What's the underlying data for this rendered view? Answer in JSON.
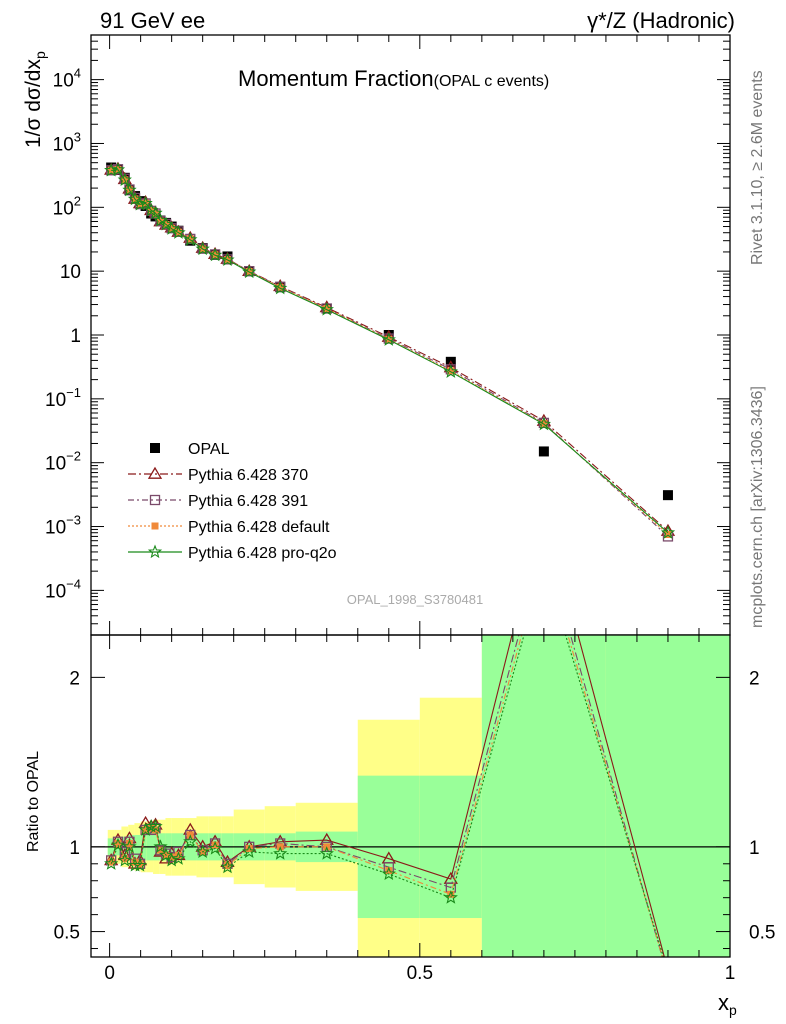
{
  "header": {
    "left": "91 GeV ee",
    "right": "γ*/Z (Hadronic)"
  },
  "side_labels": {
    "rivet": "Rivet 3.1.10, ≥ 2.6M events",
    "mcplots": "mcplots.cern.ch [arXiv:1306.3436]"
  },
  "chart_data": [
    {
      "type": "scatter",
      "title": "Momentum Fraction",
      "subtitle": "(OPAL c events)",
      "watermark": "OPAL_1998_S3780481",
      "ylabel": "1/σ dσ/dx_p",
      "ylabel_main": "1/σ dσ/dx",
      "ylabel_sub": "p",
      "yscale": "log",
      "ylim": [
        2e-05,
        50000
      ],
      "xlim": [
        -0.03,
        1.0
      ],
      "yticks": [
        {
          "v": 10000,
          "base": "10",
          "exp": "4"
        },
        {
          "v": 1000,
          "base": "10",
          "exp": "3"
        },
        {
          "v": 100,
          "base": "10",
          "exp": "2"
        },
        {
          "v": 10,
          "base": "10",
          "exp": ""
        },
        {
          "v": 1,
          "base": "1",
          "exp": ""
        },
        {
          "v": 0.1,
          "base": "10",
          "exp": "−1"
        },
        {
          "v": 0.01,
          "base": "10",
          "exp": "−2"
        },
        {
          "v": 0.001,
          "base": "10",
          "exp": "−3"
        },
        {
          "v": 0.0001,
          "base": "10",
          "exp": "−4"
        }
      ],
      "legend_position": "lower-left",
      "x": [
        0.0025,
        0.0135,
        0.0245,
        0.032,
        0.041,
        0.049,
        0.058,
        0.067,
        0.074,
        0.082,
        0.091,
        0.1,
        0.111,
        0.13,
        0.15,
        0.17,
        0.19,
        0.225,
        0.275,
        0.35,
        0.45,
        0.55,
        0.7,
        0.9
      ],
      "series": [
        {
          "name": "OPAL",
          "color": "#000000",
          "marker": "square",
          "values": [
            420,
            385,
            290,
            185,
            150,
            125,
            105,
            80,
            72,
            62,
            57,
            50,
            43,
            30,
            23,
            18,
            17,
            10,
            5.6,
            2.6,
            1.0,
            0.38,
            0.015,
            0.0031
          ]
        },
        {
          "name": "Pythia 6.428 370",
          "color": "#8b1a1a",
          "marker": "triangle",
          "values": [
            385,
            400,
            275,
            195,
            135,
            115,
            120,
            90,
            82,
            60,
            53,
            48,
            41,
            33,
            23,
            18.5,
            15.5,
            10,
            5.8,
            2.7,
            0.93,
            0.31,
            0.045,
            0.00085
          ]
        },
        {
          "name": "Pythia 6.428 391",
          "color": "#7a4a6a",
          "marker": "open-square",
          "values": [
            380,
            395,
            280,
            190,
            140,
            112,
            115,
            88,
            80,
            61,
            55,
            47,
            42,
            32,
            22.5,
            18.3,
            15.3,
            10,
            5.7,
            2.6,
            0.88,
            0.29,
            0.042,
            0.0007
          ]
        },
        {
          "name": "Pythia 6.428 default",
          "color": "#f08a3a",
          "marker": "filled-square",
          "values": [
            382,
            392,
            270,
            188,
            136,
            113,
            116,
            89,
            79,
            61,
            54,
            47,
            41,
            32,
            22.4,
            18.1,
            15.2,
            9.9,
            5.6,
            2.6,
            0.86,
            0.275,
            0.041,
            0.00075
          ]
        },
        {
          "name": "Pythia 6.428 pro-q2o",
          "color": "#1a8a1a",
          "marker": "star",
          "values": [
            378,
            388,
            268,
            186,
            134,
            111,
            115,
            90,
            81,
            62,
            54,
            46,
            40,
            31,
            22.2,
            17.8,
            15.0,
            9.7,
            5.4,
            2.5,
            0.84,
            0.265,
            0.04,
            0.0008
          ]
        }
      ]
    },
    {
      "type": "line",
      "ylabel": "Ratio to OPAL",
      "xlabel": "x_p",
      "xlabel_main": "x",
      "xlabel_sub": "p",
      "ylim": [
        0.35,
        2.25
      ],
      "xlim": [
        -0.03,
        1.0
      ],
      "yticks": [
        "0.5",
        "1",
        "2"
      ],
      "xticks": [
        "0",
        "0.5",
        "1"
      ],
      "ytick_values": [
        0.5,
        1,
        2
      ],
      "xtick_values": [
        0,
        0.5,
        1
      ],
      "reference_line": 1,
      "bands": [
        {
          "x0": -0.003,
          "x1": 0.008,
          "yel": 0.1,
          "grn": 0.05
        },
        {
          "x0": 0.008,
          "x1": 0.019,
          "yel": 0.1,
          "grn": 0.05
        },
        {
          "x0": 0.019,
          "x1": 0.03,
          "yel": 0.12,
          "grn": 0.06
        },
        {
          "x0": 0.03,
          "x1": 0.04,
          "yel": 0.13,
          "grn": 0.07
        },
        {
          "x0": 0.04,
          "x1": 0.05,
          "yel": 0.14,
          "grn": 0.07
        },
        {
          "x0": 0.05,
          "x1": 0.06,
          "yel": 0.15,
          "grn": 0.08
        },
        {
          "x0": 0.06,
          "x1": 0.07,
          "yel": 0.15,
          "grn": 0.08
        },
        {
          "x0": 0.07,
          "x1": 0.08,
          "yel": 0.16,
          "grn": 0.08
        },
        {
          "x0": 0.08,
          "x1": 0.09,
          "yel": 0.16,
          "grn": 0.08
        },
        {
          "x0": 0.09,
          "x1": 0.1,
          "yel": 0.17,
          "grn": 0.08
        },
        {
          "x0": 0.1,
          "x1": 0.12,
          "yel": 0.17,
          "grn": 0.08
        },
        {
          "x0": 0.12,
          "x1": 0.14,
          "yel": 0.17,
          "grn": 0.08
        },
        {
          "x0": 0.14,
          "x1": 0.16,
          "yel": 0.18,
          "grn": 0.08
        },
        {
          "x0": 0.16,
          "x1": 0.18,
          "yel": 0.18,
          "grn": 0.08
        },
        {
          "x0": 0.18,
          "x1": 0.2,
          "yel": 0.18,
          "grn": 0.08
        },
        {
          "x0": 0.2,
          "x1": 0.25,
          "yel": 0.22,
          "grn": 0.08
        },
        {
          "x0": 0.25,
          "x1": 0.3,
          "yel": 0.24,
          "grn": 0.08
        },
        {
          "x0": 0.3,
          "x1": 0.4,
          "yel": 0.26,
          "grn": 0.09
        },
        {
          "x0": 0.4,
          "x1": 0.5,
          "yel": 0.75,
          "grn": 0.42
        },
        {
          "x0": 0.5,
          "x1": 0.6,
          "yel": 0.88,
          "grn": 0.42
        },
        {
          "x0": 0.6,
          "x1": 0.8,
          "yel": 3.0,
          "grn": 3.0
        },
        {
          "x0": 0.8,
          "x1": 1.0,
          "yel": 3.0,
          "grn": 3.0
        }
      ],
      "x": [
        0.0025,
        0.0135,
        0.0245,
        0.032,
        0.041,
        0.049,
        0.058,
        0.067,
        0.074,
        0.082,
        0.091,
        0.1,
        0.111,
        0.13,
        0.15,
        0.17,
        0.19,
        0.225,
        0.275,
        0.35,
        0.45,
        0.55,
        0.7,
        0.9
      ],
      "series": [
        {
          "name": "Pythia 6.428 370",
          "color": "#8b1a1a",
          "dash": "",
          "marker": "triangle",
          "values": [
            0.92,
            1.04,
            0.95,
            1.05,
            0.9,
            0.92,
            1.14,
            1.12,
            1.13,
            0.97,
            0.93,
            0.96,
            0.95,
            1.1,
            1.0,
            1.03,
            0.91,
            1.0,
            1.03,
            1.04,
            0.93,
            0.81,
            3.0,
            0.27
          ]
        },
        {
          "name": "Pythia 6.428 391",
          "color": "#7a4a6a",
          "dash": "8,3,2,3",
          "marker": "open-square",
          "values": [
            0.92,
            1.03,
            0.97,
            1.03,
            0.93,
            0.9,
            1.1,
            1.1,
            1.11,
            0.98,
            0.96,
            0.94,
            0.97,
            1.07,
            0.98,
            1.02,
            0.9,
            1.0,
            1.02,
            1.0,
            0.88,
            0.76,
            2.8,
            0.23
          ]
        },
        {
          "name": "Pythia 6.428 default",
          "color": "#f08a3a",
          "dash": "6,3,2,3",
          "marker": "filled-square",
          "values": [
            0.91,
            1.02,
            0.93,
            1.02,
            0.91,
            0.9,
            1.1,
            1.11,
            1.1,
            0.98,
            0.95,
            0.94,
            0.95,
            1.07,
            0.97,
            1.01,
            0.89,
            0.99,
            1.0,
            1.0,
            0.86,
            0.72,
            2.73,
            0.24
          ]
        },
        {
          "name": "Pythia 6.428 pro-q2o",
          "color": "#1a8a1a",
          "dash": "2,2",
          "marker": "star",
          "values": [
            0.9,
            1.01,
            0.92,
            1.0,
            0.89,
            0.89,
            1.1,
            1.12,
            1.12,
            1.0,
            0.95,
            0.92,
            0.93,
            1.03,
            0.97,
            0.99,
            0.88,
            0.97,
            0.96,
            0.96,
            0.84,
            0.7,
            2.67,
            0.26
          ]
        }
      ]
    }
  ]
}
